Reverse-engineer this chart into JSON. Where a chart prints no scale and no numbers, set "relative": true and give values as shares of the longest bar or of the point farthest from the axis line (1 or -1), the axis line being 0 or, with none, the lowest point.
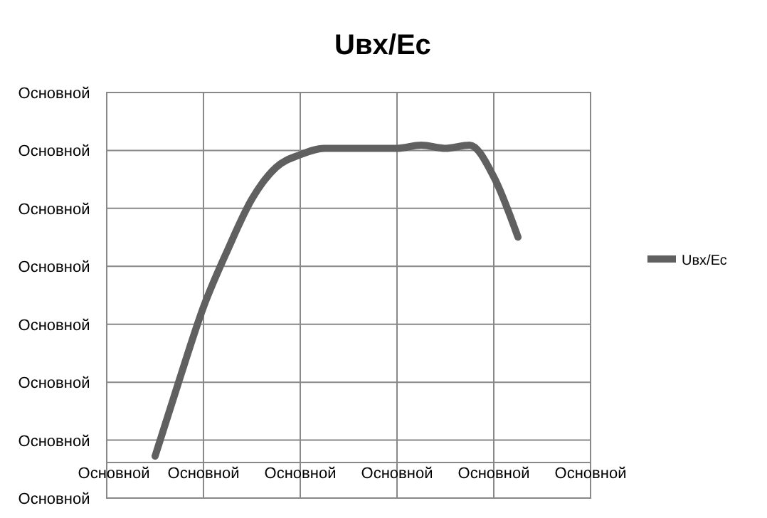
{
  "chart_data": {
    "type": "line",
    "title": "Uвх/Ес",
    "relative": true,
    "categories": [
      null,
      null,
      null,
      null,
      null,
      null,
      null,
      null,
      null,
      null,
      null,
      null,
      null,
      null,
      null,
      null
    ],
    "series": [
      {
        "name": "Uвх/Ес",
        "color": "#606060",
        "values": [
          0.02,
          0.26,
          0.49,
          0.67,
          0.83,
          0.93,
          0.97,
          0.99,
          0.99,
          0.99,
          0.99,
          1.0,
          0.99,
          1.0,
          0.9,
          0.71
        ]
      }
    ],
    "annotations": [
      "Основной",
      "Основной",
      "Основной",
      "Основной",
      "Основной",
      "Основной",
      "Основной",
      "Основной",
      "Основной",
      "Основной",
      "Основной",
      "Основной",
      "Основной",
      "Основной"
    ],
    "grid": true,
    "legend": "right",
    "marker": "none",
    "line_style": "solid"
  }
}
